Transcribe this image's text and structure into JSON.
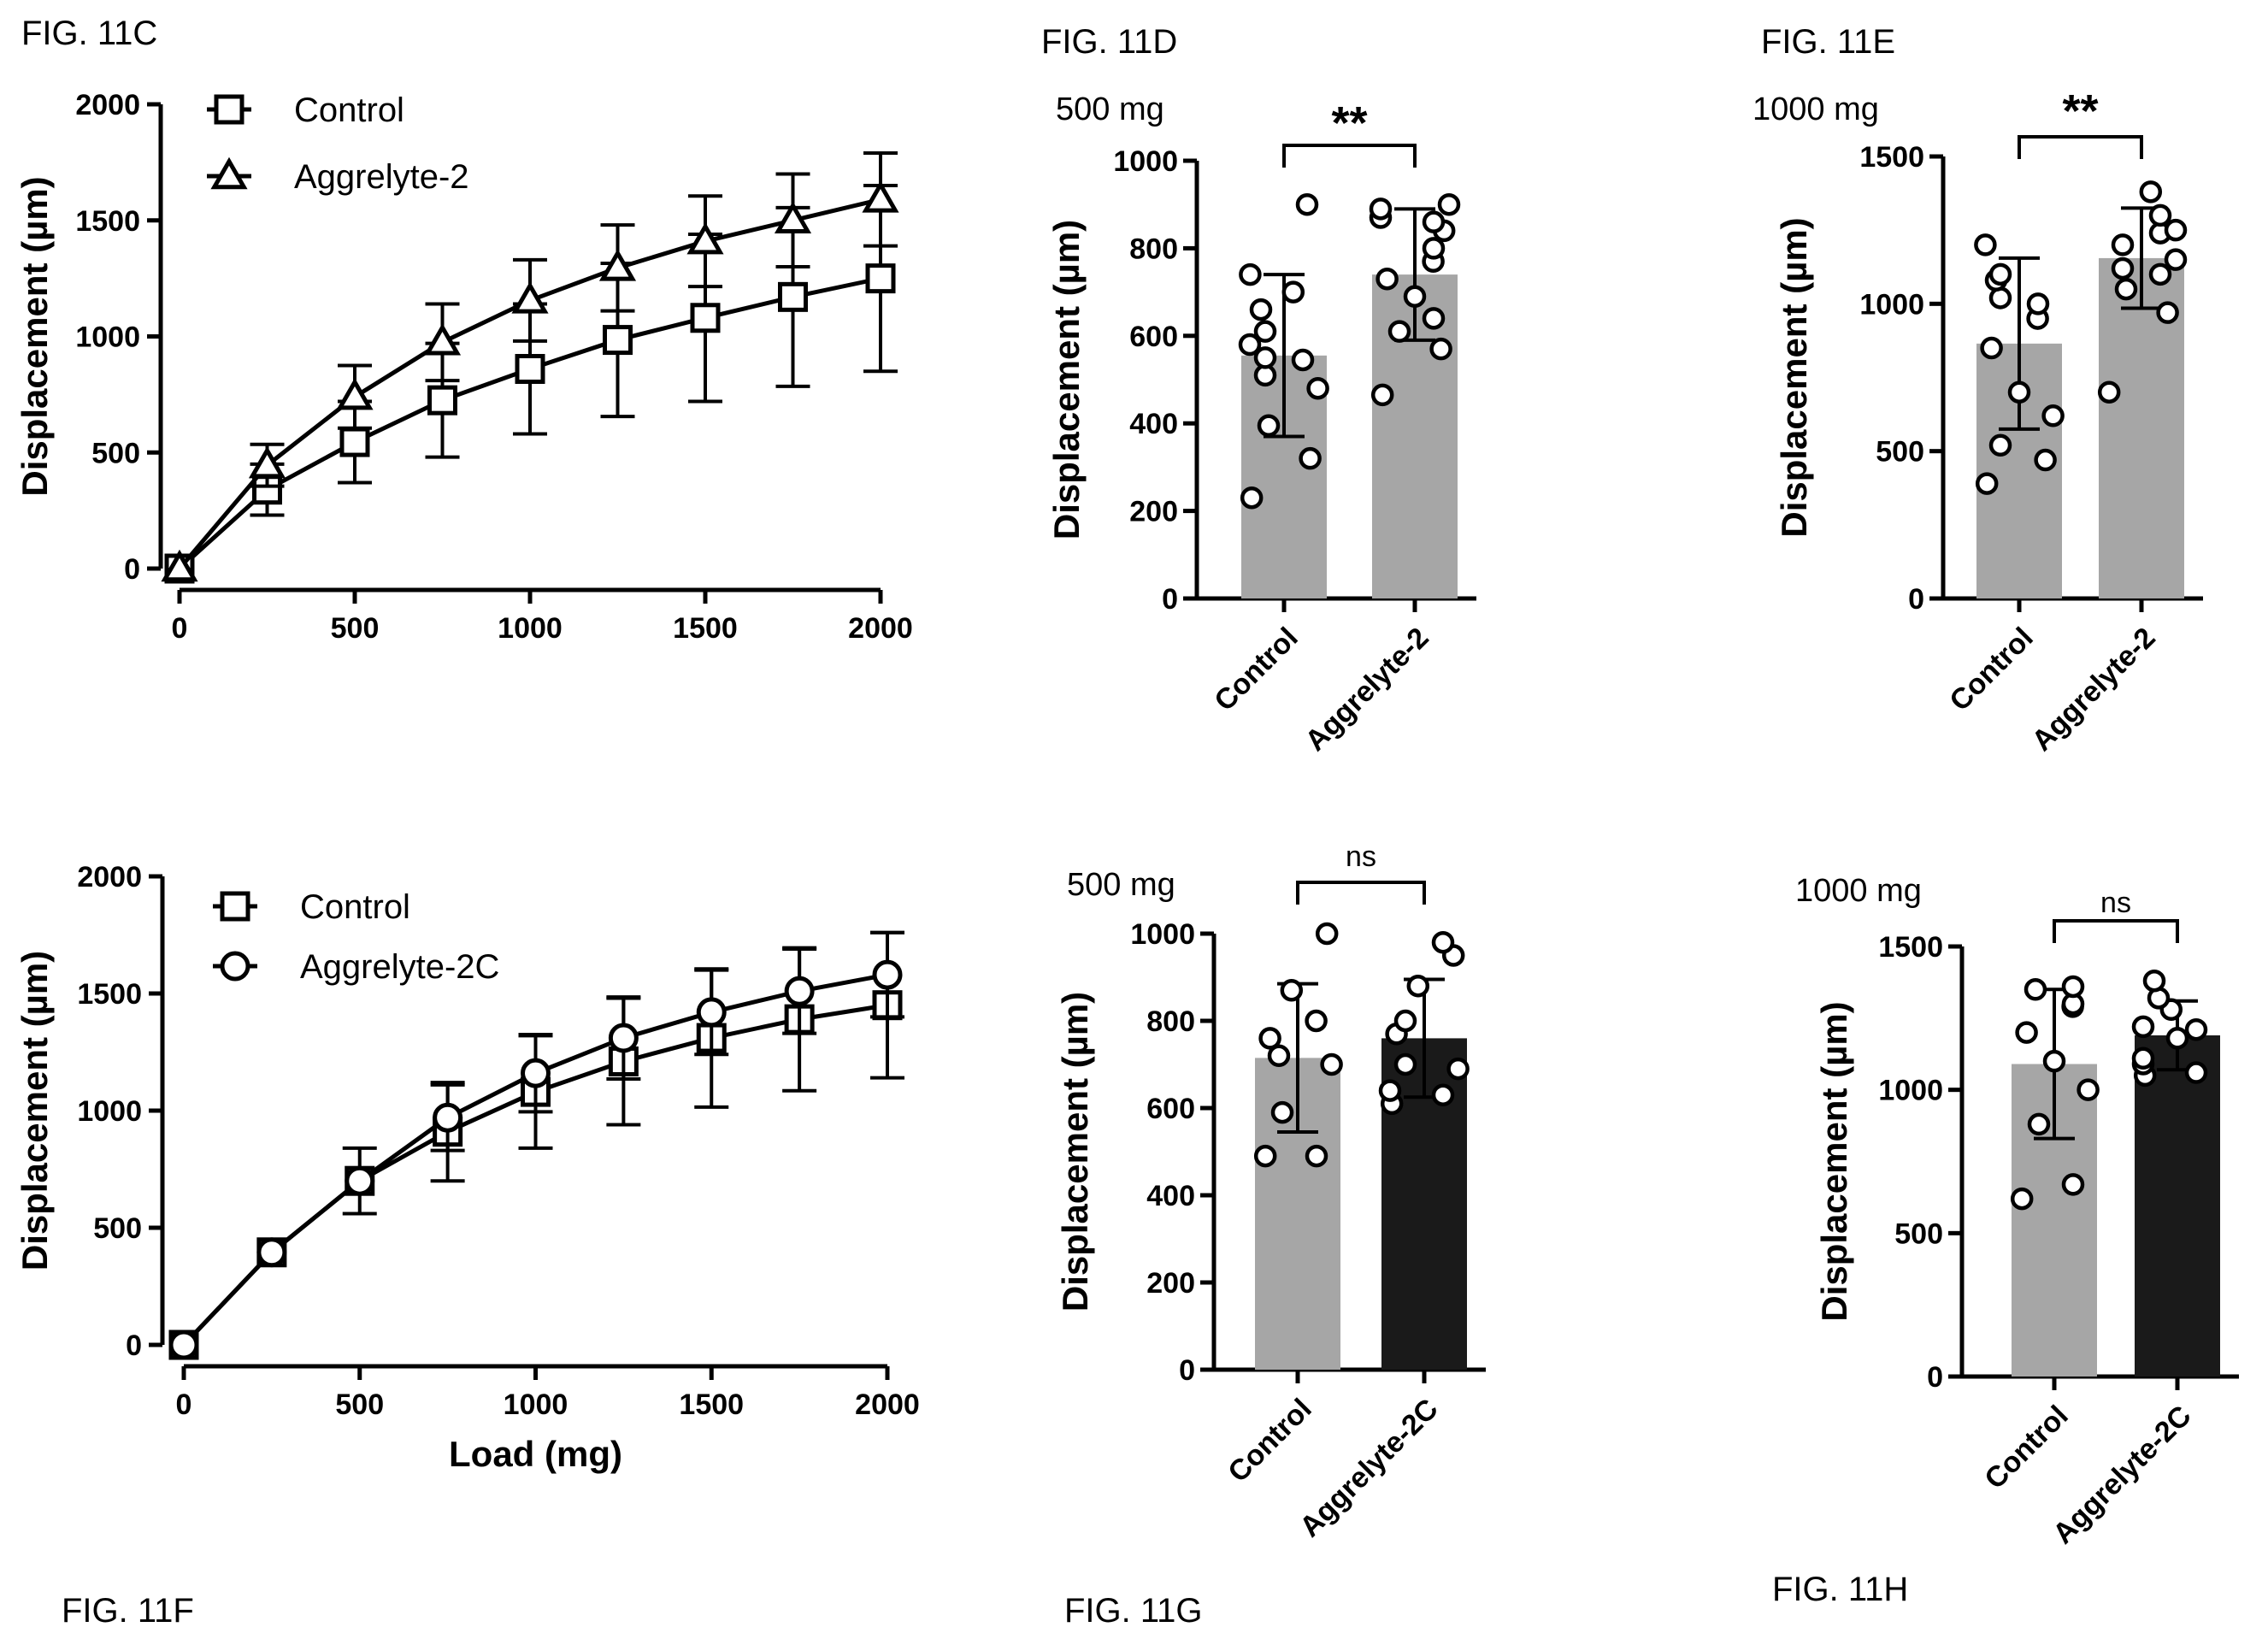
{
  "figure_labels": {
    "c": "FIG. 11C",
    "d": "FIG. 11D",
    "e": "FIG. 11E",
    "f": "FIG. 11F",
    "g": "FIG. 11G",
    "h": "FIG. 11H"
  },
  "colors": {
    "control_bar": "#a6a6a6",
    "aggrelyte2_bar": "#a6a6a6",
    "aggrelyte2c_bar": "#1a1a1a",
    "line": "#000000"
  },
  "chart_data": [
    {
      "id": "c",
      "type": "line",
      "xlabel": "",
      "ylabel": "Displacement (µm)",
      "xlim": [
        0,
        2000
      ],
      "ylim": [
        0,
        2000
      ],
      "xticks": [
        0,
        500,
        1000,
        1500,
        2000
      ],
      "yticks": [
        0,
        500,
        1000,
        1500,
        2000
      ],
      "legend": "top-left",
      "x": [
        0,
        250,
        500,
        750,
        1000,
        1250,
        1500,
        1750,
        2000
      ],
      "series": [
        {
          "name": "Control",
          "marker": "square",
          "values": [
            0,
            340,
            545,
            725,
            860,
            985,
            1080,
            1170,
            1250
          ],
          "errors": [
            0,
            110,
            175,
            245,
            280,
            330,
            360,
            385,
            400
          ]
        },
        {
          "name": "Aggrelyte-2",
          "marker": "triangle",
          "values": [
            0,
            445,
            740,
            975,
            1155,
            1295,
            1410,
            1500,
            1590
          ],
          "errors": [
            0,
            90,
            135,
            165,
            175,
            185,
            195,
            200,
            200
          ]
        }
      ]
    },
    {
      "id": "d",
      "type": "bar",
      "title": "500 mg",
      "ylabel": "Displacement (µm)",
      "ylim": [
        0,
        1000
      ],
      "yticks": [
        0,
        200,
        400,
        600,
        800,
        1000
      ],
      "categories": [
        "Control",
        "Aggrelyte-2"
      ],
      "values": [
        555,
        740
      ],
      "errors": [
        185,
        150
      ],
      "points": [
        [
          230,
          320,
          395,
          480,
          510,
          545,
          550,
          580,
          610,
          660,
          700,
          740,
          900
        ],
        [
          465,
          570,
          610,
          640,
          690,
          730,
          770,
          800,
          840,
          860,
          870,
          890,
          900
        ]
      ],
      "significance": "**"
    },
    {
      "id": "e",
      "type": "bar",
      "title": "1000 mg",
      "ylabel": "Displacement (µm)",
      "ylim": [
        0,
        1500
      ],
      "yticks": [
        0,
        500,
        1000,
        1500
      ],
      "categories": [
        "Control",
        "Aggrelyte-2"
      ],
      "values": [
        865,
        1155
      ],
      "errors": [
        290,
        170
      ],
      "points": [
        [
          390,
          470,
          520,
          620,
          700,
          850,
          950,
          1000,
          1020,
          1080,
          1100,
          1200
        ],
        [
          700,
          970,
          1050,
          1100,
          1120,
          1150,
          1200,
          1240,
          1250,
          1300,
          1380
        ]
      ],
      "significance": "**"
    },
    {
      "id": "f",
      "type": "line",
      "xlabel": "Load (mg)",
      "ylabel": "Displacement (µm)",
      "xlim": [
        0,
        2000
      ],
      "ylim": [
        0,
        2000
      ],
      "xticks": [
        0,
        500,
        1000,
        1500,
        2000
      ],
      "yticks": [
        0,
        500,
        1000,
        1500,
        2000
      ],
      "legend": "top-left",
      "x": [
        0,
        250,
        500,
        750,
        1000,
        1250,
        1500,
        1750,
        2000
      ],
      "series": [
        {
          "name": "Control",
          "marker": "square",
          "values": [
            0,
            395,
            700,
            910,
            1080,
            1210,
            1310,
            1390,
            1450
          ],
          "errors": [
            0,
            0,
            140,
            210,
            240,
            270,
            295,
            305,
            310
          ]
        },
        {
          "name": "Aggrelyte-2C",
          "marker": "circle",
          "values": [
            0,
            395,
            700,
            970,
            1160,
            1310,
            1420,
            1510,
            1580
          ],
          "errors": [
            0,
            0,
            0,
            140,
            165,
            175,
            180,
            180,
            180
          ]
        }
      ]
    },
    {
      "id": "g",
      "type": "bar",
      "title": "500 mg",
      "ylabel": "Displacement (µm)",
      "ylim": [
        0,
        1000
      ],
      "yticks": [
        0,
        200,
        400,
        600,
        800,
        1000
      ],
      "categories": [
        "Control",
        "Aggrelyte-2C"
      ],
      "values": [
        715,
        760
      ],
      "errors": [
        170,
        135
      ],
      "points": [
        [
          490,
          490,
          590,
          700,
          720,
          760,
          800,
          870,
          1000
        ],
        [
          610,
          630,
          640,
          690,
          700,
          770,
          800,
          880,
          950,
          980
        ]
      ],
      "significance": "ns"
    },
    {
      "id": "h",
      "type": "bar",
      "title": "1000 mg",
      "ylabel": "Displacement (µm)",
      "ylim": [
        0,
        1500
      ],
      "yticks": [
        0,
        500,
        1000,
        1500
      ],
      "categories": [
        "Control",
        "Aggrelyte-2C"
      ],
      "values": [
        1090,
        1190
      ],
      "errors": [
        260,
        120
      ],
      "points": [
        [
          620,
          670,
          880,
          1000,
          1100,
          1200,
          1290,
          1300,
          1350,
          1360
        ],
        [
          1050,
          1060,
          1090,
          1110,
          1180,
          1210,
          1220,
          1280,
          1320,
          1380
        ]
      ],
      "significance": "ns"
    }
  ]
}
